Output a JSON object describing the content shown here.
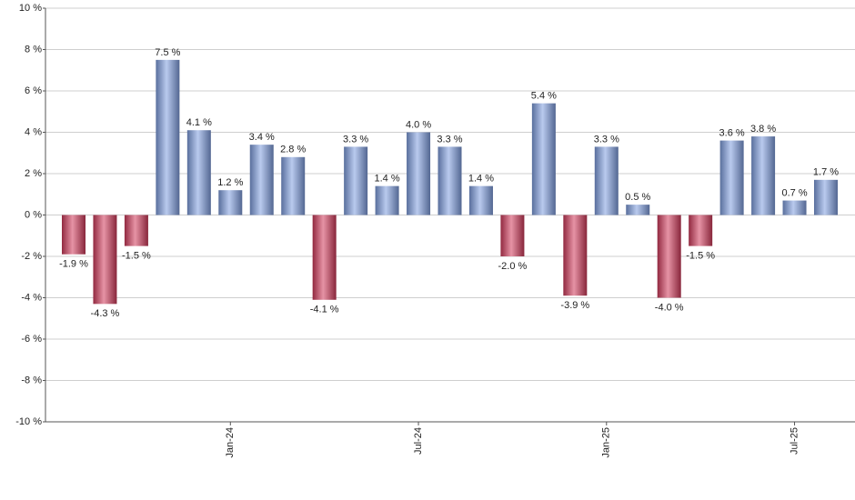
{
  "chart_data": {
    "type": "bar",
    "categories": [
      null,
      null,
      null,
      null,
      null,
      "Jan-24",
      null,
      null,
      null,
      null,
      null,
      "Jul-24",
      null,
      null,
      null,
      null,
      null,
      "Jan-25",
      null,
      null,
      null,
      null,
      null,
      "Jul-25",
      null
    ],
    "values": [
      -1.9,
      -4.3,
      -1.5,
      7.5,
      4.1,
      1.2,
      3.4,
      2.8,
      -4.1,
      3.3,
      1.4,
      4.0,
      3.3,
      1.4,
      -2.0,
      5.4,
      -3.9,
      3.3,
      0.5,
      -4.0,
      -1.5,
      3.6,
      3.8,
      0.7,
      1.7
    ],
    "value_labels": [
      "-1.9 %",
      "-4.3 %",
      "-1.5 %",
      "7.5 %",
      "4.1 %",
      "1.2 %",
      "3.4 %",
      "2.8 %",
      "-4.1 %",
      "3.3 %",
      "1.4 %",
      "4.0 %",
      "3.3 %",
      "1.4 %",
      "-2.0 %",
      "5.4 %",
      "-3.9 %",
      "3.3 %",
      "0.5 %",
      "-4.0 %",
      "-1.5 %",
      "3.6 %",
      "3.8 %",
      "0.7 %",
      "1.7 %"
    ],
    "color": "#7f9fe0",
    "negative_color": "#d13b5b",
    "ylim": [
      -10,
      10
    ],
    "yticks": [
      {
        "value": -10,
        "label": "-10 %"
      },
      {
        "value": -8,
        "label": "-8 %"
      },
      {
        "value": -6,
        "label": "-6 %"
      },
      {
        "value": -4,
        "label": "-4 %"
      },
      {
        "value": -2,
        "label": "-2 %"
      },
      {
        "value": 0,
        "label": "0 %"
      },
      {
        "value": 2,
        "label": "2 %"
      },
      {
        "value": 4,
        "label": "4 %"
      },
      {
        "value": 6,
        "label": "6 %"
      },
      {
        "value": 8,
        "label": "8 %"
      },
      {
        "value": 10,
        "label": "10 %"
      }
    ],
    "grid": true
  }
}
